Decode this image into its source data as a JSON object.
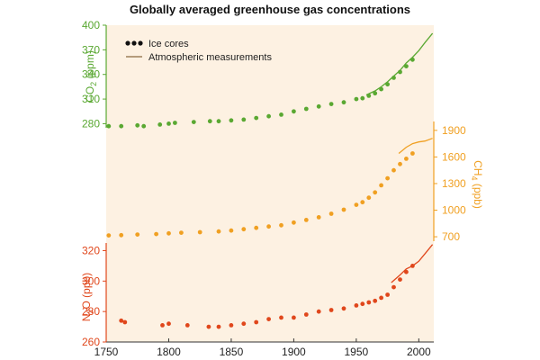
{
  "chart_data": {
    "type": "scatter",
    "title": "Globally averaged greenhouse gas concentrations",
    "background_color": "#fdf1e2",
    "xlabel": "",
    "xlim": [
      1750,
      2012
    ],
    "x_ticks": [
      1750,
      1800,
      1850,
      1900,
      1950,
      2000
    ],
    "legend": {
      "placement": "top-left",
      "entries": [
        {
          "label": "Ice cores",
          "marker": "dots"
        },
        {
          "label": "Atmospheric measurements",
          "marker": "line"
        }
      ]
    },
    "panels": [
      {
        "name": "CO2",
        "axis_side": "left",
        "ylabel": "CO2 (ppm)",
        "ylabel_main": "CO",
        "ylabel_sub": "2",
        "ylabel_unit": " (ppm)",
        "color": "#5aa832",
        "ylim": [
          275,
          400
        ],
        "y_ticks": [
          280,
          310,
          340,
          370,
          400
        ],
        "ice_cores": {
          "x": [
            1752,
            1762,
            1775,
            1780,
            1793,
            1800,
            1805,
            1820,
            1833,
            1840,
            1850,
            1860,
            1870,
            1880,
            1890,
            1900,
            1910,
            1920,
            1930,
            1940,
            1950,
            1955,
            1960,
            1965,
            1970,
            1975,
            1980,
            1985,
            1990,
            1995
          ],
          "values": [
            277,
            277,
            278,
            277,
            279,
            280,
            281,
            282,
            283,
            283,
            284,
            285,
            287,
            289,
            291,
            295,
            298,
            301,
            304,
            306,
            310,
            311,
            314,
            317,
            322,
            328,
            336,
            343,
            350,
            358
          ]
        },
        "atmospheric": {
          "x": [
            1958,
            1965,
            1970,
            1975,
            1980,
            1985,
            1990,
            1995,
            2000,
            2005,
            2011
          ],
          "values": [
            315,
            320,
            325,
            331,
            338,
            345,
            354,
            361,
            369,
            379,
            390
          ]
        }
      },
      {
        "name": "CH4",
        "axis_side": "right",
        "ylabel": "CH4 (ppb)",
        "ylabel_main": "CH",
        "ylabel_sub": "4",
        "ylabel_unit": " (ppb)",
        "color": "#f0a022",
        "ylim": [
          650,
          2000
        ],
        "y_ticks": [
          700,
          1000,
          1300,
          1600,
          1900
        ],
        "ice_cores": {
          "x": [
            1752,
            1762,
            1775,
            1790,
            1800,
            1810,
            1825,
            1840,
            1850,
            1860,
            1870,
            1880,
            1890,
            1900,
            1910,
            1920,
            1930,
            1940,
            1950,
            1955,
            1960,
            1965,
            1970,
            1975,
            1980,
            1985,
            1990,
            1995
          ],
          "values": [
            715,
            718,
            725,
            730,
            738,
            745,
            752,
            760,
            770,
            785,
            800,
            815,
            830,
            860,
            890,
            920,
            960,
            1005,
            1060,
            1090,
            1140,
            1200,
            1280,
            1360,
            1450,
            1520,
            1580,
            1640
          ]
        },
        "atmospheric": {
          "x": [
            1984,
            1990,
            1995,
            2000,
            2005,
            2011
          ],
          "values": [
            1640,
            1710,
            1750,
            1770,
            1780,
            1810
          ]
        }
      },
      {
        "name": "N2O",
        "axis_side": "left",
        "ylabel": "N2O (ppb)",
        "ylabel_main": "N",
        "ylabel_sub": "2",
        "ylabel_unit": "O (ppb)",
        "color": "#e0471c",
        "ylim": [
          260,
          325
        ],
        "y_ticks": [
          260,
          280,
          300,
          320
        ],
        "ice_cores": {
          "x": [
            1762,
            1765,
            1795,
            1800,
            1815,
            1832,
            1840,
            1850,
            1860,
            1870,
            1880,
            1890,
            1900,
            1910,
            1920,
            1930,
            1940,
            1950,
            1955,
            1960,
            1965,
            1970,
            1975,
            1980,
            1985,
            1990,
            1995
          ],
          "values": [
            274,
            273,
            271,
            272,
            271,
            270,
            270,
            271,
            272,
            273,
            275,
            276,
            276,
            278,
            280,
            281,
            282,
            284,
            285,
            286,
            287,
            289,
            291,
            296,
            301,
            306,
            310
          ]
        },
        "atmospheric": {
          "x": [
            1978,
            1985,
            1990,
            1995,
            2000,
            2005,
            2011
          ],
          "values": [
            299,
            304,
            308,
            310,
            313,
            318,
            324
          ]
        }
      }
    ]
  }
}
